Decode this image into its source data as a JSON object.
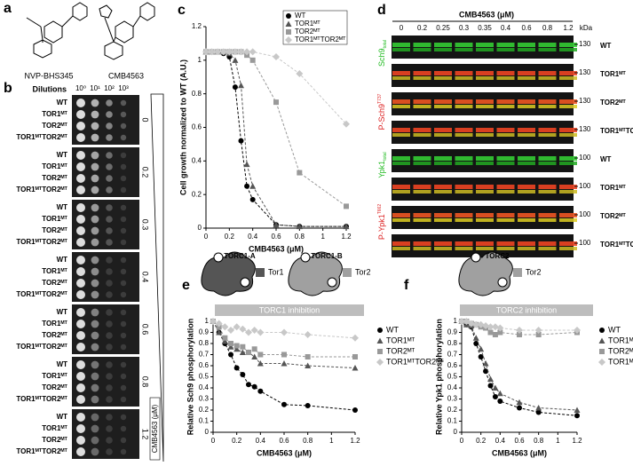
{
  "panel_letters": [
    "a",
    "b",
    "c",
    "d",
    "e",
    "f"
  ],
  "panels": {
    "a": {
      "compounds": [
        "NVP-BHS345",
        "CMB4563"
      ]
    },
    "b": {
      "dilutions_label": "Dilutions",
      "dilutions": [
        "10⁰",
        "10¹",
        "10²",
        "10³"
      ],
      "strains": [
        "WT",
        "TOR1ᴹᵀ",
        "TOR2ᴹᵀ",
        "TOR1ᴹᵀTOR2ᴹᵀ"
      ],
      "concentrations": [
        0,
        0.2,
        0.3,
        0.4,
        0.6,
        0.8,
        1.2
      ],
      "axis_label": "CMB4563 (μM)"
    },
    "d": {
      "title": "CMB4563 (μM)",
      "lanes": [
        0,
        0.2,
        0.25,
        0.3,
        0.35,
        0.4,
        0.6,
        0.8,
        1.2
      ],
      "unit": "kDa",
      "rows": [
        {
          "marker": 130,
          "strain": "WT"
        },
        {
          "marker": 130,
          "strain": "TOR1ᴹᵀ"
        },
        {
          "marker": 130,
          "strain": "TOR2ᴹᵀ"
        },
        {
          "marker": 130,
          "strain": "TOR1ᴹᵀTOR2ᴹᵀ"
        },
        {
          "marker": 100,
          "strain": "WT"
        },
        {
          "marker": 100,
          "strain": "TOR1ᴹᵀ"
        },
        {
          "marker": 100,
          "strain": "TOR2ᴹᵀ"
        },
        {
          "marker": 100,
          "strain": "TOR1ᴹᵀTOR2ᴹᵀ"
        }
      ],
      "antibodies": [
        {
          "main": "Sch9",
          "small": "total",
          "color": "#22bb22"
        },
        {
          "main": "P-Sch9",
          "small": "T737",
          "color": "#dd2222"
        },
        {
          "main": "Ypk1",
          "small": "total",
          "color": "#22bb22"
        },
        {
          "main": "P-Ypk1",
          "small": "T662",
          "color": "#dd2222"
        }
      ]
    },
    "e": {
      "complexes": [
        "TORC1-A",
        "TORC1-B"
      ],
      "subunits": [
        "Tor1",
        "Tor2"
      ],
      "banner": "TORC1 inhibition"
    },
    "f": {
      "complexes": [
        "TORC2"
      ],
      "subunits": [
        "Tor2"
      ],
      "banner": "TORC2 inhibition"
    }
  },
  "chart_data": [
    {
      "type": "line",
      "ylabel": "Cell growth normalized to WT (A.U.)",
      "xlabel": "CMB4563 (μM)",
      "x": [
        0,
        0.05,
        0.1,
        0.15,
        0.2,
        0.25,
        0.3,
        0.35,
        0.4,
        0.6,
        0.8,
        1.2
      ],
      "xlim": [
        0,
        1.2
      ],
      "xticks": [
        0,
        0.2,
        0.4,
        0.6,
        0.8,
        1,
        1.2
      ],
      "ylim": [
        0,
        1.2
      ],
      "yticks": [
        0,
        0.2,
        0.4,
        0.6,
        0.8,
        1,
        1.2
      ],
      "legend": "upper right",
      "linestyle": "dashed",
      "series": [
        {
          "name": "WT",
          "color": "#000000",
          "marker": "circle",
          "values": [
            1.05,
            1.05,
            1.05,
            1.04,
            1.02,
            0.84,
            0.52,
            0.25,
            0.17,
            0.02,
            0.01,
            0.01
          ]
        },
        {
          "name": "TOR1ᴹᵀ",
          "color": "#555555",
          "marker": "triangle",
          "values": [
            1.05,
            1.05,
            1.05,
            1.05,
            1.04,
            1.0,
            0.85,
            0.38,
            0.25,
            0.02,
            0.01,
            0.01
          ]
        },
        {
          "name": "TOR2ᴹᵀ",
          "color": "#999999",
          "marker": "square",
          "values": [
            1.05,
            1.05,
            1.05,
            1.05,
            1.05,
            1.05,
            1.05,
            1.03,
            1.0,
            0.75,
            0.33,
            0.13
          ]
        },
        {
          "name": "TOR1ᴹᵀTOR2ᴹᵀ",
          "color": "#c8c8c8",
          "marker": "diamond",
          "values": [
            1.05,
            1.05,
            1.05,
            1.05,
            1.05,
            1.05,
            1.05,
            1.05,
            1.05,
            1.02,
            0.92,
            0.62
          ]
        }
      ]
    },
    {
      "type": "line",
      "ylabel": "Relative Sch9 phosphorylation",
      "xlabel": "CMB4563 (μM)",
      "x": [
        0,
        0.05,
        0.1,
        0.15,
        0.2,
        0.25,
        0.3,
        0.35,
        0.4,
        0.6,
        0.8,
        1.2
      ],
      "xlim": [
        0,
        1.2
      ],
      "xticks": [
        0,
        0.2,
        0.4,
        0.6,
        0.8,
        1,
        1.2
      ],
      "ylim": [
        0,
        1
      ],
      "yticks": [
        0,
        0.1,
        0.2,
        0.3,
        0.4,
        0.5,
        0.6,
        0.7,
        0.8,
        0.9,
        1
      ],
      "legend": "right",
      "linestyle": "dashed",
      "series": [
        {
          "name": "WT",
          "color": "#000000",
          "marker": "circle",
          "values": [
            1,
            0.9,
            0.8,
            0.7,
            0.58,
            0.52,
            0.43,
            0.41,
            0.37,
            0.25,
            0.24,
            0.2
          ]
        },
        {
          "name": "TOR1ᴹᵀ",
          "color": "#555555",
          "marker": "triangle",
          "values": [
            1,
            0.9,
            0.82,
            0.77,
            0.75,
            0.72,
            0.72,
            0.68,
            0.62,
            0.62,
            0.6,
            0.58
          ]
        },
        {
          "name": "TOR2ᴹᵀ",
          "color": "#999999",
          "marker": "square",
          "values": [
            1,
            0.95,
            0.85,
            0.8,
            0.78,
            0.77,
            0.72,
            0.75,
            0.7,
            0.7,
            0.68,
            0.68
          ]
        },
        {
          "name": "TOR1ᴹᵀTOR2ᴹᵀ",
          "color": "#c8c8c8",
          "marker": "diamond",
          "values": [
            1,
            0.98,
            0.95,
            0.92,
            0.95,
            0.93,
            0.9,
            0.92,
            0.9,
            0.9,
            0.88,
            0.85
          ]
        }
      ]
    },
    {
      "type": "line",
      "ylabel": "Relative Ypk1 phosphorylation",
      "xlabel": "CMB4563 (μM)",
      "x": [
        0,
        0.05,
        0.1,
        0.15,
        0.2,
        0.25,
        0.3,
        0.35,
        0.4,
        0.6,
        0.8,
        1.2
      ],
      "xlim": [
        0,
        1.2
      ],
      "xticks": [
        0,
        0.2,
        0.4,
        0.6,
        0.8,
        1,
        1.2
      ],
      "ylim": [
        0,
        1
      ],
      "yticks": [
        0,
        0.1,
        0.2,
        0.3,
        0.4,
        0.5,
        0.6,
        0.7,
        0.8,
        0.9,
        1
      ],
      "legend": "right",
      "linestyle": "dashed",
      "series": [
        {
          "name": "WT",
          "color": "#000000",
          "marker": "circle",
          "values": [
            1,
            0.97,
            0.95,
            0.8,
            0.68,
            0.55,
            0.42,
            0.32,
            0.28,
            0.22,
            0.18,
            0.15
          ]
        },
        {
          "name": "TOR1ᴹᵀ",
          "color": "#555555",
          "marker": "triangle",
          "values": [
            1,
            0.97,
            0.96,
            0.85,
            0.75,
            0.62,
            0.48,
            0.4,
            0.35,
            0.27,
            0.22,
            0.2
          ]
        },
        {
          "name": "TOR2ᴹᵀ",
          "color": "#999999",
          "marker": "square",
          "values": [
            1,
            1,
            0.98,
            0.97,
            0.95,
            0.94,
            0.9,
            0.88,
            0.9,
            0.88,
            0.88,
            0.9
          ]
        },
        {
          "name": "TOR1ᴹᵀTOR2ᴹᵀ",
          "color": "#c8c8c8",
          "marker": "diamond",
          "values": [
            1,
            1,
            0.98,
            0.97,
            0.97,
            0.96,
            0.95,
            0.95,
            0.94,
            0.92,
            0.92,
            0.92
          ]
        }
      ]
    }
  ]
}
